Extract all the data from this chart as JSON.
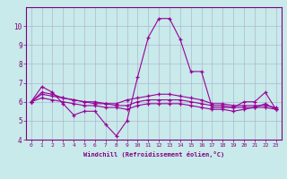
{
  "x": [
    0,
    1,
    2,
    3,
    4,
    5,
    6,
    7,
    8,
    9,
    10,
    11,
    12,
    13,
    14,
    15,
    16,
    17,
    18,
    19,
    20,
    21,
    22,
    23
  ],
  "line1": [
    6.0,
    6.8,
    6.5,
    5.9,
    5.3,
    5.5,
    5.5,
    4.8,
    4.2,
    5.0,
    7.3,
    9.4,
    10.4,
    10.4,
    9.3,
    7.6,
    7.6,
    5.7,
    5.7,
    5.7,
    6.0,
    6.0,
    6.5,
    5.6
  ],
  "line2": [
    6.0,
    6.5,
    6.4,
    6.2,
    6.1,
    6.0,
    6.0,
    5.9,
    5.9,
    6.1,
    6.2,
    6.3,
    6.4,
    6.4,
    6.3,
    6.2,
    6.1,
    5.9,
    5.9,
    5.8,
    5.8,
    5.8,
    5.8,
    5.7
  ],
  "line3": [
    6.0,
    6.4,
    6.3,
    6.2,
    6.1,
    6.0,
    5.9,
    5.9,
    5.8,
    5.8,
    6.0,
    6.1,
    6.1,
    6.1,
    6.1,
    6.0,
    5.9,
    5.8,
    5.8,
    5.7,
    5.7,
    5.7,
    5.7,
    5.6
  ],
  "line4": [
    6.0,
    6.2,
    6.1,
    6.0,
    5.9,
    5.8,
    5.8,
    5.7,
    5.7,
    5.6,
    5.8,
    5.9,
    5.9,
    5.9,
    5.9,
    5.8,
    5.7,
    5.6,
    5.6,
    5.5,
    5.6,
    5.7,
    5.9,
    5.6
  ],
  "line_color": "#990099",
  "bg_color": "#c8eaea",
  "grid_color": "#aaaacc",
  "text_color": "#800080",
  "ylim": [
    4,
    11
  ],
  "yticks": [
    4,
    5,
    6,
    7,
    8,
    9,
    10
  ],
  "xlabel": "Windchill (Refroidissement éolien,°C)"
}
